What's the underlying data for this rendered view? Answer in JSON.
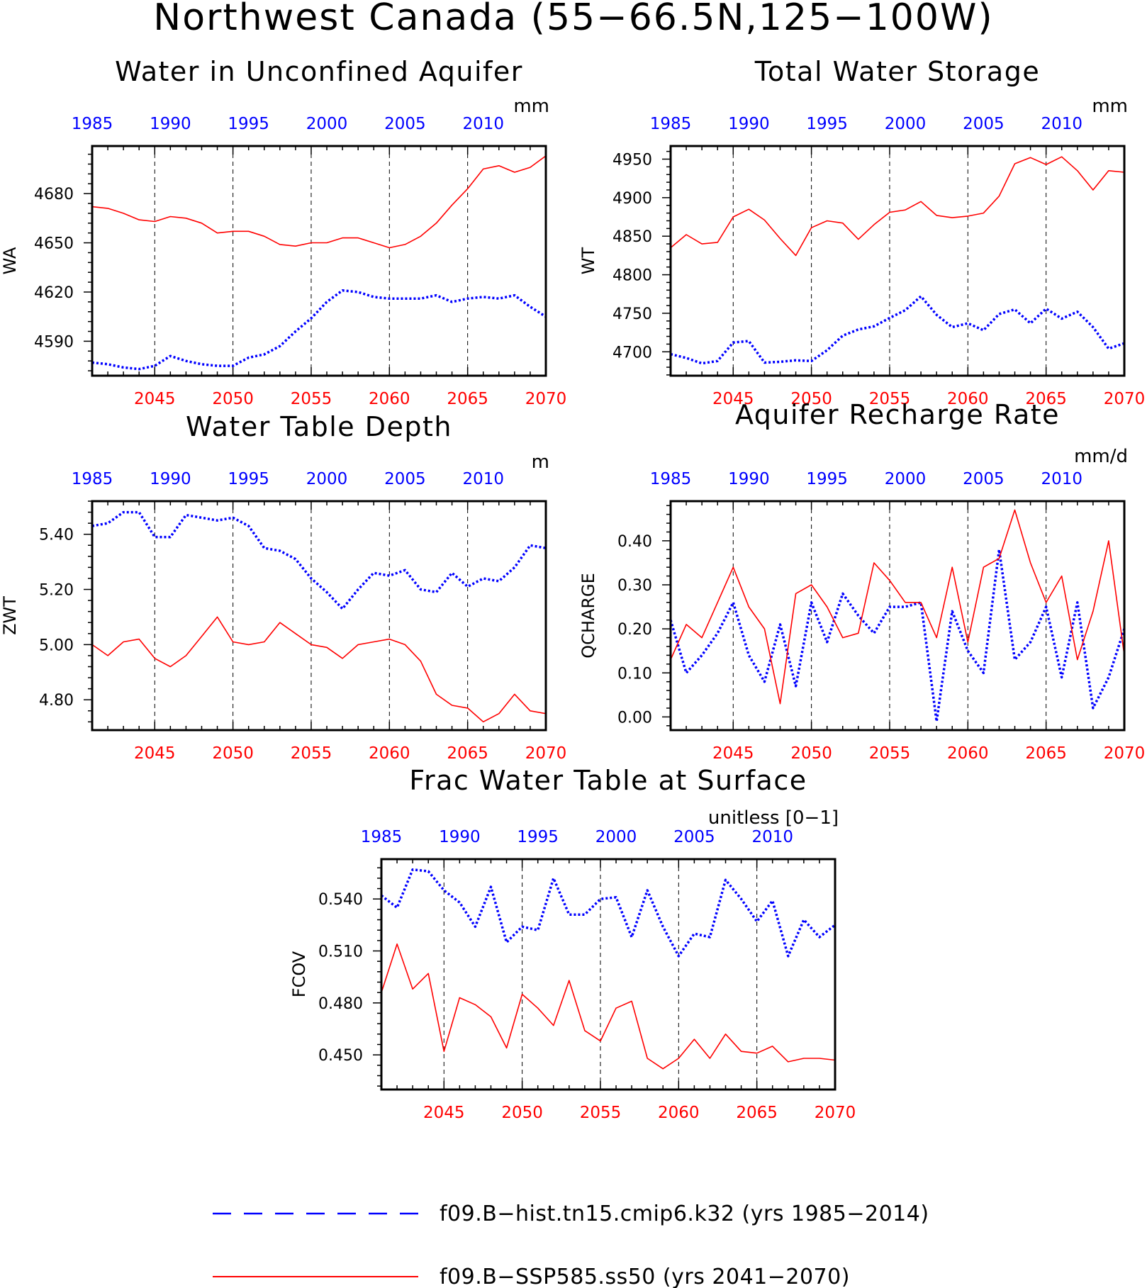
{
  "figure": {
    "title": "Northwest Canada (55−66.5N,125−100W)"
  },
  "legend": {
    "items": [
      {
        "label": "f09.B−hist.tn15.cmip6.k32 (yrs 1985−2014)",
        "color": "#0000ff",
        "style": "dashed"
      },
      {
        "label": "f09.B−SSP585.ss50 (yrs 2041−2070)",
        "color": "#ff0000",
        "style": "solid"
      }
    ]
  },
  "chart_data": [
    {
      "type": "line",
      "title": "Water in Unconfined Aquifer",
      "units": "mm",
      "ylabel": "WA",
      "ylim": [
        4569,
        4709
      ],
      "yticks": [
        4590,
        4620,
        4650,
        4680
      ],
      "ytick_labels": [
        "4590",
        "4620",
        "4650",
        "4680"
      ],
      "x_bottom": {
        "range": [
          2041,
          2070
        ],
        "ticks": [
          2045,
          2050,
          2055,
          2060,
          2065,
          2070
        ],
        "labels": [
          "2045",
          "2050",
          "2055",
          "2060",
          "2065",
          "2070"
        ],
        "color": "#ff0000"
      },
      "x_top": {
        "ticks": [
          1985,
          1990,
          1995,
          2000,
          2005,
          2010
        ],
        "labels": [
          "1985",
          "1990",
          "1995",
          "2000",
          "2005",
          "2010"
        ],
        "color": "#0000ff"
      },
      "series": [
        {
          "color": "#0000ff",
          "style": "dotted",
          "values": [
            4577,
            4576,
            4574,
            4573,
            4575,
            4581,
            4578,
            4576,
            4575,
            4575,
            4580,
            4582,
            4587,
            4596,
            4604,
            4614,
            4621,
            4620,
            4617,
            4616,
            4616,
            4616,
            4618,
            4614,
            4616,
            4617,
            4616,
            4618,
            4611,
            4605
          ]
        },
        {
          "color": "#ff0000",
          "style": "solid",
          "values": [
            4672,
            4671,
            4668,
            4664,
            4663,
            4666,
            4665,
            4662,
            4656,
            4657,
            4657,
            4654,
            4649,
            4648,
            4650,
            4650,
            4653,
            4653,
            4650,
            4647,
            4649,
            4654,
            4662,
            4673,
            4683,
            4695,
            4697,
            4693,
            4696,
            4703
          ]
        }
      ]
    },
    {
      "type": "line",
      "title": "Total Water Storage",
      "units": "mm",
      "ylabel": "WT",
      "ylim": [
        4669,
        4967
      ],
      "yticks": [
        4700,
        4750,
        4800,
        4850,
        4900,
        4950
      ],
      "ytick_labels": [
        "4700",
        "4750",
        "4800",
        "4850",
        "4900",
        "4950"
      ],
      "x_bottom": {
        "range": [
          2041,
          2070
        ],
        "ticks": [
          2045,
          2050,
          2055,
          2060,
          2065,
          2070
        ],
        "labels": [
          "2045",
          "2050",
          "2055",
          "2060",
          "2065",
          "2070"
        ],
        "color": "#ff0000"
      },
      "x_top": {
        "ticks": [
          1985,
          1990,
          1995,
          2000,
          2005,
          2010
        ],
        "labels": [
          "1985",
          "1990",
          "1995",
          "2000",
          "2005",
          "2010"
        ],
        "color": "#0000ff"
      },
      "series": [
        {
          "color": "#0000ff",
          "style": "dotted",
          "values": [
            4697,
            4692,
            4685,
            4688,
            4712,
            4714,
            4686,
            4687,
            4689,
            4688,
            4702,
            4721,
            4729,
            4733,
            4744,
            4754,
            4772,
            4748,
            4732,
            4737,
            4728,
            4749,
            4755,
            4737,
            4756,
            4743,
            4752,
            4732,
            4704,
            4711
          ]
        },
        {
          "color": "#ff0000",
          "style": "solid",
          "values": [
            4835,
            4852,
            4840,
            4842,
            4875,
            4885,
            4871,
            4847,
            4825,
            4861,
            4870,
            4867,
            4846,
            4865,
            4881,
            4884,
            4895,
            4877,
            4874,
            4876,
            4880,
            4902,
            4944,
            4952,
            4943,
            4953,
            4935,
            4910,
            4935,
            4933
          ]
        }
      ]
    },
    {
      "type": "line",
      "title": "Water Table Depth",
      "units": "m",
      "ylabel": "ZWT",
      "ylim": [
        4.69,
        5.52
      ],
      "yticks": [
        4.8,
        5.0,
        5.2,
        5.4
      ],
      "ytick_labels": [
        "4.80",
        "5.00",
        "5.20",
        "5.40"
      ],
      "x_bottom": {
        "range": [
          2041,
          2070
        ],
        "ticks": [
          2045,
          2050,
          2055,
          2060,
          2065,
          2070
        ],
        "labels": [
          "2045",
          "2050",
          "2055",
          "2060",
          "2065",
          "2070"
        ],
        "color": "#ff0000"
      },
      "x_top": {
        "ticks": [
          1985,
          1990,
          1995,
          2000,
          2005,
          2010
        ],
        "labels": [
          "1985",
          "1990",
          "1995",
          "2000",
          "2005",
          "2010"
        ],
        "color": "#0000ff"
      },
      "series": [
        {
          "color": "#0000ff",
          "style": "dotted",
          "values": [
            5.43,
            5.44,
            5.48,
            5.48,
            5.39,
            5.39,
            5.47,
            5.46,
            5.45,
            5.46,
            5.43,
            5.35,
            5.34,
            5.31,
            5.24,
            5.19,
            5.13,
            5.2,
            5.26,
            5.25,
            5.27,
            5.2,
            5.19,
            5.26,
            5.21,
            5.24,
            5.23,
            5.28,
            5.36,
            5.35
          ]
        },
        {
          "color": "#ff0000",
          "style": "solid",
          "values": [
            5.0,
            4.96,
            5.01,
            5.02,
            4.95,
            4.92,
            4.96,
            5.03,
            5.1,
            5.01,
            5.0,
            5.01,
            5.08,
            5.04,
            5.0,
            4.99,
            4.95,
            5.0,
            5.01,
            5.02,
            5.0,
            4.94,
            4.82,
            4.78,
            4.77,
            4.72,
            4.75,
            4.82,
            4.76,
            4.75
          ]
        }
      ]
    },
    {
      "type": "line",
      "title": "Aquifer Recharge Rate",
      "units": "mm/d",
      "ylabel": "QCHARGE",
      "ylim": [
        -0.03,
        0.49
      ],
      "yticks": [
        0.0,
        0.1,
        0.2,
        0.3,
        0.4
      ],
      "ytick_labels": [
        "0.00",
        "0.10",
        "0.20",
        "0.30",
        "0.40"
      ],
      "x_bottom": {
        "range": [
          2041,
          2070
        ],
        "ticks": [
          2045,
          2050,
          2055,
          2060,
          2065,
          2070
        ],
        "labels": [
          "2045",
          "2050",
          "2055",
          "2060",
          "2065",
          "2070"
        ],
        "color": "#ff0000"
      },
      "x_top": {
        "ticks": [
          1985,
          1990,
          1995,
          2000,
          2005,
          2010
        ],
        "labels": [
          "1985",
          "1990",
          "1995",
          "2000",
          "2005",
          "2010"
        ],
        "color": "#0000ff"
      },
      "series": [
        {
          "color": "#0000ff",
          "style": "dotted",
          "values": [
            0.22,
            0.1,
            0.14,
            0.19,
            0.26,
            0.14,
            0.08,
            0.21,
            0.07,
            0.26,
            0.17,
            0.28,
            0.23,
            0.19,
            0.25,
            0.25,
            0.26,
            -0.01,
            0.24,
            0.15,
            0.1,
            0.38,
            0.13,
            0.17,
            0.25,
            0.09,
            0.26,
            0.02,
            0.09,
            0.2
          ]
        },
        {
          "color": "#ff0000",
          "style": "solid",
          "values": [
            0.13,
            0.21,
            0.18,
            0.26,
            0.34,
            0.25,
            0.2,
            0.03,
            0.28,
            0.3,
            0.25,
            0.18,
            0.19,
            0.35,
            0.31,
            0.26,
            0.26,
            0.18,
            0.34,
            0.17,
            0.34,
            0.36,
            0.47,
            0.35,
            0.26,
            0.32,
            0.13,
            0.24,
            0.4,
            0.14
          ]
        }
      ]
    },
    {
      "type": "line",
      "title": "Frac Water Table at Surface",
      "units": "unitless [0−1]",
      "ylabel": "FCOV",
      "ylim": [
        0.43,
        0.563
      ],
      "yticks": [
        0.45,
        0.48,
        0.51,
        0.54
      ],
      "ytick_labels": [
        "0.450",
        "0.480",
        "0.510",
        "0.540"
      ],
      "x_bottom": {
        "range": [
          2041,
          2070
        ],
        "ticks": [
          2045,
          2050,
          2055,
          2060,
          2065,
          2070
        ],
        "labels": [
          "2045",
          "2050",
          "2055",
          "2060",
          "2065",
          "2070"
        ],
        "color": "#ff0000"
      },
      "x_top": {
        "ticks": [
          1985,
          1990,
          1995,
          2000,
          2005,
          2010
        ],
        "labels": [
          "1985",
          "1990",
          "1995",
          "2000",
          "2005",
          "2010"
        ],
        "color": "#0000ff"
      },
      "series": [
        {
          "color": "#0000ff",
          "style": "dotted",
          "values": [
            0.542,
            0.535,
            0.557,
            0.556,
            0.545,
            0.538,
            0.524,
            0.547,
            0.515,
            0.524,
            0.522,
            0.552,
            0.531,
            0.531,
            0.54,
            0.541,
            0.518,
            0.545,
            0.524,
            0.507,
            0.52,
            0.518,
            0.551,
            0.54,
            0.527,
            0.539,
            0.507,
            0.528,
            0.518,
            0.525
          ]
        },
        {
          "color": "#ff0000",
          "style": "solid",
          "values": [
            0.486,
            0.514,
            0.488,
            0.497,
            0.452,
            0.483,
            0.479,
            0.472,
            0.454,
            0.485,
            0.477,
            0.467,
            0.493,
            0.464,
            0.458,
            0.477,
            0.481,
            0.448,
            0.442,
            0.448,
            0.459,
            0.448,
            0.462,
            0.452,
            0.451,
            0.455,
            0.446,
            0.448,
            0.448,
            0.447
          ]
        }
      ]
    }
  ]
}
